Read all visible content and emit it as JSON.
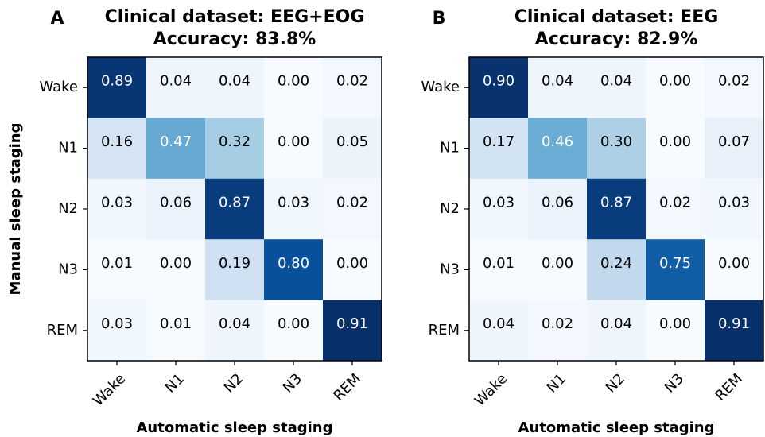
{
  "chart_data": [
    {
      "type": "heatmap",
      "panel_label": "A",
      "title": "Clinical dataset: EEG+EOG",
      "subtitle": "Accuracy: 83.8%",
      "x_label": "Automatic sleep staging",
      "y_label": "Manual sleep staging",
      "colormap": "Blues",
      "x_categories": [
        "Wake",
        "N1",
        "N2",
        "N3",
        "REM"
      ],
      "y_categories": [
        "Wake",
        "N1",
        "N2",
        "N3",
        "REM"
      ],
      "values": [
        [
          0.89,
          0.04,
          0.04,
          0,
          0.02
        ],
        [
          0.16,
          0.47,
          0.32,
          0,
          0.05
        ],
        [
          0.03,
          0.06,
          0.87,
          0.03,
          0.02
        ],
        [
          0.01,
          0,
          0.19,
          0.8,
          0
        ],
        [
          0.03,
          0.01,
          0.04,
          0,
          0.91
        ]
      ],
      "value_labels": [
        [
          "0.89",
          "0.04",
          "0.04",
          "0.00",
          "0.02"
        ],
        [
          "0.16",
          "0.47",
          "0.32",
          "0.00",
          "0.05"
        ],
        [
          "0.03",
          "0.06",
          "0.87",
          "0.03",
          "0.02"
        ],
        [
          "0.01",
          "0.00",
          "0.19",
          "0.80",
          "0.00"
        ],
        [
          "0.03",
          "0.01",
          "0.04",
          "0.00",
          "0.91"
        ]
      ]
    },
    {
      "type": "heatmap",
      "panel_label": "B",
      "title": "Clinical dataset: EEG",
      "subtitle": "Accuracy: 82.9%",
      "x_label": "Automatic sleep staging",
      "colormap": "Blues",
      "x_categories": [
        "Wake",
        "N1",
        "N2",
        "N3",
        "REM"
      ],
      "y_categories": [
        "Wake",
        "N1",
        "N2",
        "N3",
        "REM"
      ],
      "values": [
        [
          0.9,
          0.04,
          0.04,
          0,
          0.02
        ],
        [
          0.17,
          0.46,
          0.3,
          0,
          0.07
        ],
        [
          0.03,
          0.06,
          0.87,
          0.02,
          0.03
        ],
        [
          0.01,
          0,
          0.24,
          0.75,
          0
        ],
        [
          0.04,
          0.02,
          0.04,
          0,
          0.91
        ]
      ],
      "value_labels": [
        [
          "0.90",
          "0.04",
          "0.04",
          "0.00",
          "0.02"
        ],
        [
          "0.17",
          "0.46",
          "0.30",
          "0.00",
          "0.07"
        ],
        [
          "0.03",
          "0.06",
          "0.87",
          "0.02",
          "0.03"
        ],
        [
          "0.01",
          "0.00",
          "0.24",
          "0.75",
          "0.00"
        ],
        [
          "0.04",
          "0.02",
          "0.04",
          "0.00",
          "0.91"
        ]
      ]
    }
  ]
}
